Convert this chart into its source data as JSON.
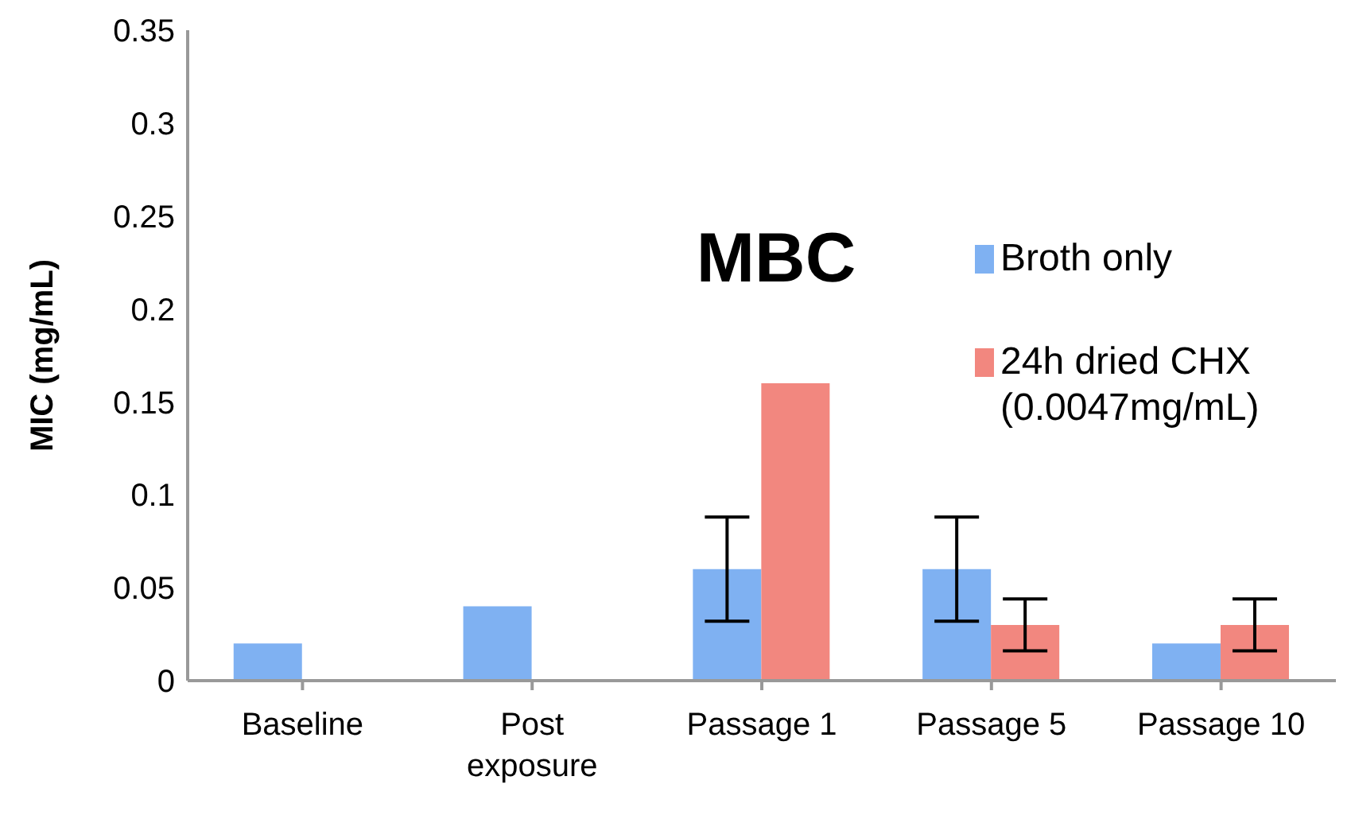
{
  "chart_data": {
    "type": "bar",
    "title": "MBC",
    "ylabel": "MIC (mg/mL)",
    "categories": [
      "Baseline",
      "Post exposure",
      "Passage 1",
      "Passage 5",
      "Passage 10"
    ],
    "series": [
      {
        "name": "Broth only",
        "color": "#7fb1f2",
        "values": [
          0.02,
          0.04,
          0.06,
          0.06,
          0.02
        ],
        "errors": [
          0,
          0,
          0.028,
          0.028,
          0
        ]
      },
      {
        "name": "24h dried CHX (0.0047mg/mL)",
        "color": "#f2877f",
        "values": [
          null,
          null,
          0.16,
          0.03,
          0.03
        ],
        "errors": [
          null,
          null,
          0,
          0.014,
          0.014
        ]
      }
    ],
    "ylim": [
      0,
      0.35
    ],
    "yticks": [
      0,
      0.05,
      0.1,
      0.15,
      0.2,
      0.25,
      0.3,
      0.35
    ],
    "grid": false,
    "legend": "right"
  }
}
